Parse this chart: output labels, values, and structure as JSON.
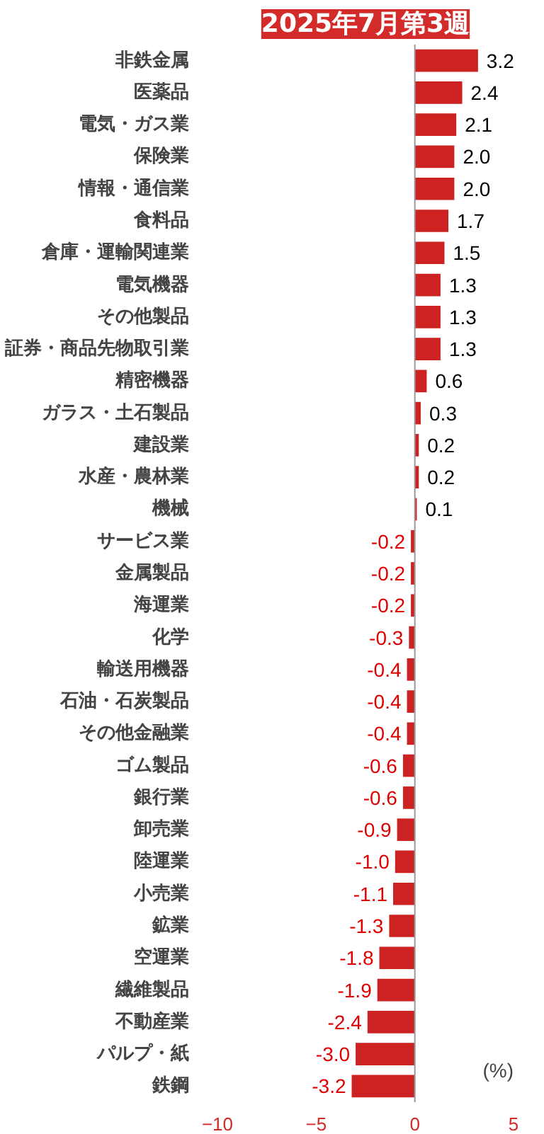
{
  "chart_data": {
    "type": "bar",
    "orientation": "horizontal",
    "title": "2025年7月第3週",
    "categories": [
      "非鉄金属",
      "医薬品",
      "電気・ガス業",
      "保険業",
      "情報・通信業",
      "食料品",
      "倉庫・運輸関連業",
      "電気機器",
      "その他製品",
      "証券・商品先物取引業",
      "精密機器",
      "ガラス・土石製品",
      "建設業",
      "水産・農林業",
      "機械",
      "サービス業",
      "金属製品",
      "海運業",
      "化学",
      "輸送用機器",
      "石油・石炭製品",
      "その他金融業",
      "ゴム製品",
      "銀行業",
      "卸売業",
      "陸運業",
      "小売業",
      "鉱業",
      "空運業",
      "繊維製品",
      "不動産業",
      "パルプ・紙",
      "鉄鋼"
    ],
    "values": [
      3.2,
      2.4,
      2.1,
      2.0,
      2.0,
      1.7,
      1.5,
      1.3,
      1.3,
      1.3,
      0.6,
      0.3,
      0.2,
      0.2,
      0.1,
      -0.2,
      -0.2,
      -0.2,
      -0.3,
      -0.4,
      -0.4,
      -0.4,
      -0.6,
      -0.6,
      -0.9,
      -1.0,
      -1.1,
      -1.3,
      -1.8,
      -1.9,
      -2.4,
      -3.0,
      -3.2
    ],
    "value_labels": [
      "3.2",
      "2.4",
      "2.1",
      "2.0",
      "2.0",
      "1.7",
      "1.5",
      "1.3",
      "1.3",
      "1.3",
      "0.6",
      "0.3",
      "0.2",
      "0.2",
      "0.1",
      "-0.2",
      "-0.2",
      "-0.2",
      "-0.3",
      "-0.4",
      "-0.4",
      "-0.4",
      "-0.6",
      "-0.6",
      "-0.9",
      "-1.0",
      "-1.1",
      "-1.3",
      "-1.8",
      "-1.9",
      "-2.4",
      "-3.0",
      "-3.2"
    ],
    "color": "#cc2222",
    "xlim": [
      -10,
      5
    ],
    "xticks": [
      -10,
      -5,
      0,
      5
    ],
    "annotations": [
      "(%)"
    ]
  }
}
